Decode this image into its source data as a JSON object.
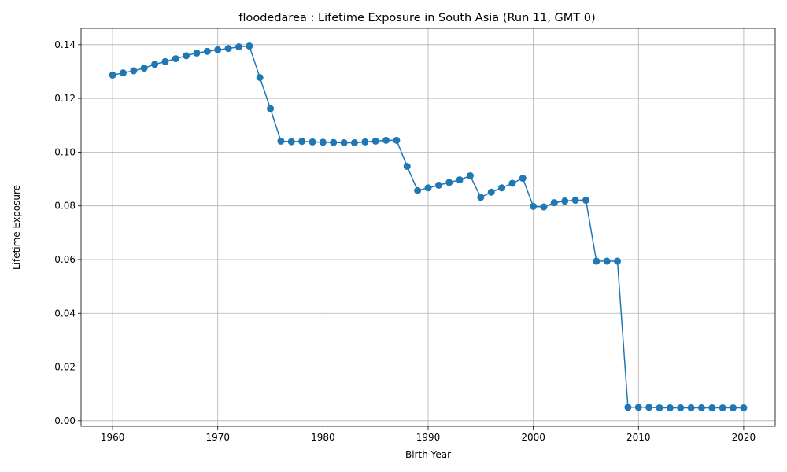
{
  "chart_data": {
    "type": "line",
    "title": "floodedarea : Lifetime Exposure in South Asia (Run 11, GMT 0)",
    "xlabel": "Birth Year",
    "ylabel": "Lifetime Exposure",
    "xlim": [
      1957,
      2023
    ],
    "ylim": [
      -0.0021,
      0.1461
    ],
    "xticks": [
      1960,
      1970,
      1980,
      1990,
      2000,
      2010,
      2020
    ],
    "xtick_labels": [
      "1960",
      "1970",
      "1980",
      "1990",
      "2000",
      "2010",
      "2020"
    ],
    "yticks": [
      0.0,
      0.02,
      0.04,
      0.06,
      0.08,
      0.1,
      0.12,
      0.14
    ],
    "ytick_labels": [
      "0.00",
      "0.02",
      "0.04",
      "0.06",
      "0.08",
      "0.10",
      "0.12",
      "0.14"
    ],
    "grid": true,
    "color": "#1f77b4",
    "marker": "circle",
    "x": [
      1960,
      1961,
      1962,
      1963,
      1964,
      1965,
      1966,
      1967,
      1968,
      1969,
      1970,
      1971,
      1972,
      1973,
      1974,
      1975,
      1976,
      1977,
      1978,
      1979,
      1980,
      1981,
      1982,
      1983,
      1984,
      1985,
      1986,
      1987,
      1988,
      1989,
      1990,
      1991,
      1992,
      1993,
      1994,
      1995,
      1996,
      1997,
      1998,
      1999,
      2000,
      2001,
      2002,
      2003,
      2004,
      2005,
      2006,
      2007,
      2008,
      2009,
      2010,
      2011,
      2012,
      2013,
      2014,
      2015,
      2016,
      2017,
      2018,
      2019,
      2020
    ],
    "y": [
      0.1287,
      0.1295,
      0.1303,
      0.1313,
      0.1327,
      0.1337,
      0.1348,
      0.1359,
      0.1369,
      0.1375,
      0.1381,
      0.1386,
      0.1392,
      0.1395,
      0.1278,
      0.1162,
      0.1041,
      0.1039,
      0.104,
      0.1038,
      0.1037,
      0.1036,
      0.1035,
      0.1035,
      0.1038,
      0.1041,
      0.1044,
      0.1044,
      0.0947,
      0.0857,
      0.0867,
      0.0877,
      0.0887,
      0.0897,
      0.0912,
      0.0832,
      0.0851,
      0.0867,
      0.0884,
      0.0903,
      0.0798,
      0.0796,
      0.0812,
      0.0818,
      0.0821,
      0.0821,
      0.0594,
      0.0594,
      0.0594,
      0.005,
      0.005,
      0.005,
      0.0048,
      0.0048,
      0.0048,
      0.0048,
      0.0048,
      0.0048,
      0.0048,
      0.0048,
      0.0048
    ]
  }
}
